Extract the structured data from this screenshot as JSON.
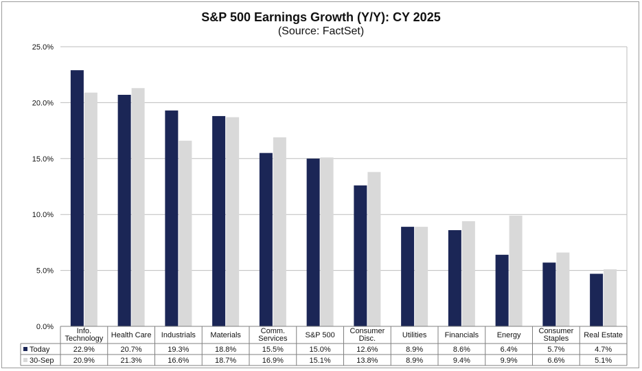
{
  "chart_data": {
    "type": "bar",
    "title": "S&P 500 Earnings Growth (Y/Y): CY 2025",
    "subtitle": "(Source: FactSet)",
    "categories": [
      [
        "Info.",
        "Technology"
      ],
      [
        "Health Care"
      ],
      [
        "Industrials"
      ],
      [
        "Materials"
      ],
      [
        "Comm.",
        "Services"
      ],
      [
        "S&P 500"
      ],
      [
        "Consumer",
        "Disc."
      ],
      [
        "Utilities"
      ],
      [
        "Financials"
      ],
      [
        "Energy"
      ],
      [
        "Consumer",
        "Staples"
      ],
      [
        "Real Estate"
      ]
    ],
    "series": [
      {
        "name": "Today",
        "color": "#1b2656",
        "values": [
          22.9,
          20.7,
          19.3,
          18.8,
          15.5,
          15.0,
          12.6,
          8.9,
          8.6,
          6.4,
          5.7,
          4.7
        ],
        "labels": [
          "22.9%",
          "20.7%",
          "19.3%",
          "18.8%",
          "15.5%",
          "15.0%",
          "12.6%",
          "8.9%",
          "8.6%",
          "6.4%",
          "5.7%",
          "4.7%"
        ]
      },
      {
        "name": "30-Sep",
        "color": "#d9d9d9",
        "values": [
          20.9,
          21.3,
          16.6,
          18.7,
          16.9,
          15.1,
          13.8,
          8.9,
          9.4,
          9.9,
          6.6,
          5.1
        ],
        "labels": [
          "20.9%",
          "21.3%",
          "16.6%",
          "18.7%",
          "16.9%",
          "15.1%",
          "13.8%",
          "8.9%",
          "9.4%",
          "9.9%",
          "6.6%",
          "5.1%"
        ]
      }
    ],
    "yticks": [
      "0.0%",
      "5.0%",
      "10.0%",
      "15.0%",
      "20.0%",
      "25.0%"
    ],
    "ylim": [
      0,
      25
    ],
    "grid": true,
    "legend": "data-table-left"
  }
}
